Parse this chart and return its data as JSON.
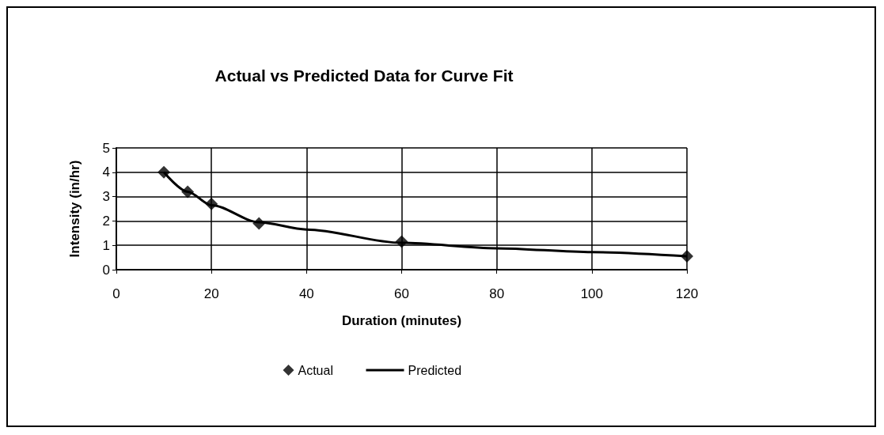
{
  "chart_data": {
    "type": "line",
    "title": "Actual vs Predicted Data for Curve Fit",
    "xlabel": "Duration (minutes)",
    "ylabel": "Intensity (in/hr)",
    "series": [
      {
        "name": "Actual",
        "type": "scatter",
        "marker": "diamond",
        "color": "#000000",
        "x": [
          10,
          15,
          20,
          30,
          60,
          120
        ],
        "values": [
          4.0,
          3.2,
          2.7,
          1.9,
          1.15,
          0.55
        ]
      },
      {
        "name": "Predicted",
        "type": "line",
        "marker": "none",
        "line_style": "solid",
        "color": "#000000",
        "x": [
          10,
          15,
          20,
          30,
          40,
          60,
          80,
          100,
          120
        ],
        "values": [
          4.0,
          3.2,
          2.65,
          1.95,
          1.65,
          1.1,
          0.88,
          0.72,
          0.55
        ]
      }
    ],
    "xlim": [
      0,
      120
    ],
    "xticks": [
      0,
      20,
      40,
      60,
      80,
      100,
      120
    ],
    "ylim": [
      0,
      5
    ],
    "yticks": [
      0,
      1,
      2,
      3,
      4,
      5
    ],
    "grid": true,
    "legend": "bottom"
  }
}
